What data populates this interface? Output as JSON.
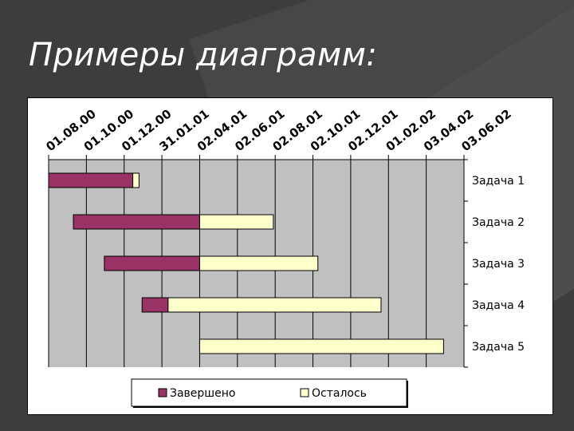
{
  "slide": {
    "title": "Примеры диаграмм:"
  },
  "colors": {
    "background": "#3d3d3d",
    "plot_area": "#c0c0c0",
    "completed": "#993366",
    "remaining": "#ffffcc",
    "title_text": "#ffffff"
  },
  "chart_data": {
    "type": "bar",
    "orientation": "horizontal",
    "stacked": true,
    "title": "",
    "x_tick_labels": [
      "01.08.00",
      "01.10.00",
      "01.12.00",
      "31.01.01",
      "02.04.01",
      "02.06.01",
      "02.08.01",
      "02.10.01",
      "02.12.01",
      "01.02.02",
      "03.04.02",
      "03.06.02"
    ],
    "xlim": [
      "01.08.00",
      "03.06.02"
    ],
    "x_axis_position": "top",
    "y_axis_position": "right",
    "grid": true,
    "categories": [
      "Задача 1",
      "Задача 2",
      "Задача 3",
      "Задача 4",
      "Задача 5"
    ],
    "series": [
      {
        "name": "Завершено",
        "color": "#993366",
        "start": [
          "01.08.00",
          "10.09.00",
          "30.10.00",
          "30.12.00",
          "02.04.01"
        ],
        "end": [
          "15.12.00",
          "02.04.01",
          "02.04.01",
          "10.02.01",
          "02.04.01"
        ]
      },
      {
        "name": "Осталось",
        "color": "#ffffcc",
        "start": [
          "15.12.00",
          "02.04.01",
          "02.04.01",
          "10.02.01",
          "02.04.01"
        ],
        "end": [
          "25.12.00",
          "30.07.01",
          "10.10.01",
          "20.01.02",
          "01.05.02"
        ]
      }
    ],
    "legend": {
      "position": "bottom",
      "entries": [
        "Завершено",
        "Осталось"
      ]
    }
  }
}
